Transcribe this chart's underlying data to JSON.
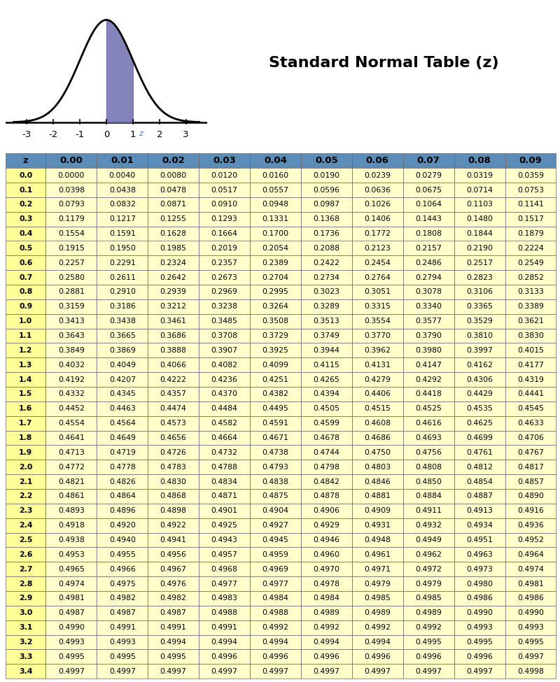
{
  "title": "Standard Normal Table (z)",
  "col_headers": [
    "z",
    "0.00",
    "0.01",
    "0.02",
    "0.03",
    "0.04",
    "0.05",
    "0.06",
    "0.07",
    "0.08",
    "0.09"
  ],
  "rows": [
    [
      "0.0",
      "0.0000",
      "0.0040",
      "0.0080",
      "0.0120",
      "0.0160",
      "0.0190",
      "0.0239",
      "0.0279",
      "0.0319",
      "0.0359"
    ],
    [
      "0.1",
      "0.0398",
      "0.0438",
      "0.0478",
      "0.0517",
      "0.0557",
      "0.0596",
      "0.0636",
      "0.0675",
      "0.0714",
      "0.0753"
    ],
    [
      "0.2",
      "0.0793",
      "0.0832",
      "0.0871",
      "0.0910",
      "0.0948",
      "0.0987",
      "0.1026",
      "0.1064",
      "0.1103",
      "0.1141"
    ],
    [
      "0.3",
      "0.1179",
      "0.1217",
      "0.1255",
      "0.1293",
      "0.1331",
      "0.1368",
      "0.1406",
      "0.1443",
      "0.1480",
      "0.1517"
    ],
    [
      "0.4",
      "0.1554",
      "0.1591",
      "0.1628",
      "0.1664",
      "0.1700",
      "0.1736",
      "0.1772",
      "0.1808",
      "0.1844",
      "0.1879"
    ],
    [
      "0.5",
      "0.1915",
      "0.1950",
      "0.1985",
      "0.2019",
      "0.2054",
      "0.2088",
      "0.2123",
      "0.2157",
      "0.2190",
      "0.2224"
    ],
    [
      "0.6",
      "0.2257",
      "0.2291",
      "0.2324",
      "0.2357",
      "0.2389",
      "0.2422",
      "0.2454",
      "0.2486",
      "0.2517",
      "0.2549"
    ],
    [
      "0.7",
      "0.2580",
      "0.2611",
      "0.2642",
      "0.2673",
      "0.2704",
      "0.2734",
      "0.2764",
      "0.2794",
      "0.2823",
      "0.2852"
    ],
    [
      "0.8",
      "0.2881",
      "0.2910",
      "0.2939",
      "0.2969",
      "0.2995",
      "0.3023",
      "0.3051",
      "0.3078",
      "0.3106",
      "0.3133"
    ],
    [
      "0.9",
      "0.3159",
      "0.3186",
      "0.3212",
      "0.3238",
      "0.3264",
      "0.3289",
      "0.3315",
      "0.3340",
      "0.3365",
      "0.3389"
    ],
    [
      "1.0",
      "0.3413",
      "0.3438",
      "0.3461",
      "0.3485",
      "0.3508",
      "0.3513",
      "0.3554",
      "0.3577",
      "0.3529",
      "0.3621"
    ],
    [
      "1.1",
      "0.3643",
      "0.3665",
      "0.3686",
      "0.3708",
      "0.3729",
      "0.3749",
      "0.3770",
      "0.3790",
      "0.3810",
      "0.3830"
    ],
    [
      "1.2",
      "0.3849",
      "0.3869",
      "0.3888",
      "0.3907",
      "0.3925",
      "0.3944",
      "0.3962",
      "0.3980",
      "0.3997",
      "0.4015"
    ],
    [
      "1.3",
      "0.4032",
      "0.4049",
      "0.4066",
      "0.4082",
      "0.4099",
      "0.4115",
      "0.4131",
      "0.4147",
      "0.4162",
      "0.4177"
    ],
    [
      "1.4",
      "0.4192",
      "0.4207",
      "0.4222",
      "0.4236",
      "0.4251",
      "0.4265",
      "0.4279",
      "0.4292",
      "0.4306",
      "0.4319"
    ],
    [
      "1.5",
      "0.4332",
      "0.4345",
      "0.4357",
      "0.4370",
      "0.4382",
      "0.4394",
      "0.4406",
      "0.4418",
      "0.4429",
      "0.4441"
    ],
    [
      "1.6",
      "0.4452",
      "0.4463",
      "0.4474",
      "0.4484",
      "0.4495",
      "0.4505",
      "0.4515",
      "0.4525",
      "0.4535",
      "0.4545"
    ],
    [
      "1.7",
      "0.4554",
      "0.4564",
      "0.4573",
      "0.4582",
      "0.4591",
      "0.4599",
      "0.4608",
      "0.4616",
      "0.4625",
      "0.4633"
    ],
    [
      "1.8",
      "0.4641",
      "0.4649",
      "0.4656",
      "0.4664",
      "0.4671",
      "0.4678",
      "0.4686",
      "0.4693",
      "0.4699",
      "0.4706"
    ],
    [
      "1.9",
      "0.4713",
      "0.4719",
      "0.4726",
      "0.4732",
      "0.4738",
      "0.4744",
      "0.4750",
      "0.4756",
      "0.4761",
      "0.4767"
    ],
    [
      "2.0",
      "0.4772",
      "0.4778",
      "0.4783",
      "0.4788",
      "0.4793",
      "0.4798",
      "0.4803",
      "0.4808",
      "0.4812",
      "0.4817"
    ],
    [
      "2.1",
      "0.4821",
      "0.4826",
      "0.4830",
      "0.4834",
      "0.4838",
      "0.4842",
      "0.4846",
      "0.4850",
      "0.4854",
      "0.4857"
    ],
    [
      "2.2",
      "0.4861",
      "0.4864",
      "0.4868",
      "0.4871",
      "0.4875",
      "0.4878",
      "0.4881",
      "0.4884",
      "0.4887",
      "0.4890"
    ],
    [
      "2.3",
      "0.4893",
      "0.4896",
      "0.4898",
      "0.4901",
      "0.4904",
      "0.4906",
      "0.4909",
      "0.4911",
      "0.4913",
      "0.4916"
    ],
    [
      "2.4",
      "0.4918",
      "0.4920",
      "0.4922",
      "0.4925",
      "0.4927",
      "0.4929",
      "0.4931",
      "0.4932",
      "0.4934",
      "0.4936"
    ],
    [
      "2.5",
      "0.4938",
      "0.4940",
      "0.4941",
      "0.4943",
      "0.4945",
      "0.4946",
      "0.4948",
      "0.4949",
      "0.4951",
      "0.4952"
    ],
    [
      "2.6",
      "0.4953",
      "0.4955",
      "0.4956",
      "0.4957",
      "0.4959",
      "0.4960",
      "0.4961",
      "0.4962",
      "0.4963",
      "0.4964"
    ],
    [
      "2.7",
      "0.4965",
      "0.4966",
      "0.4967",
      "0.4968",
      "0.4969",
      "0.4970",
      "0.4971",
      "0.4972",
      "0.4973",
      "0.4974"
    ],
    [
      "2.8",
      "0.4974",
      "0.4975",
      "0.4976",
      "0.4977",
      "0.4977",
      "0.4978",
      "0.4979",
      "0.4979",
      "0.4980",
      "0.4981"
    ],
    [
      "2.9",
      "0.4981",
      "0.4982",
      "0.4982",
      "0.4983",
      "0.4984",
      "0.4984",
      "0.4985",
      "0.4985",
      "0.4986",
      "0.4986"
    ],
    [
      "3.0",
      "0.4987",
      "0.4987",
      "0.4987",
      "0.4988",
      "0.4988",
      "0.4989",
      "0.4989",
      "0.4989",
      "0.4990",
      "0.4990"
    ],
    [
      "3.1",
      "0.4990",
      "0.4991",
      "0.4991",
      "0.4991",
      "0.4992",
      "0.4992",
      "0.4992",
      "0.4992",
      "0.4993",
      "0.4993"
    ],
    [
      "3.2",
      "0.4993",
      "0.4993",
      "0.4994",
      "0.4994",
      "0.4994",
      "0.4994",
      "0.4994",
      "0.4995",
      "0.4995",
      "0.4995"
    ],
    [
      "3.3",
      "0.4995",
      "0.4995",
      "0.4995",
      "0.4996",
      "0.4996",
      "0.4996",
      "0.4996",
      "0.4996",
      "0.4996",
      "0.4997"
    ],
    [
      "3.4",
      "0.4997",
      "0.4997",
      "0.4997",
      "0.4997",
      "0.4997",
      "0.4997",
      "0.4997",
      "0.4997",
      "0.4997",
      "0.4998"
    ]
  ],
  "header_bg": "#5B8DB8",
  "row_bg_yellow": "#FFFFCC",
  "z_col_bg": "#FFFF99",
  "bell_fill_color": "#6666AA",
  "background_color": "#FFFFFF",
  "table_border_color": "#888888",
  "title_fontsize": 16,
  "header_fontsize": 9.5,
  "data_fontsize": 7.8,
  "z_label_color": "#5577CC"
}
